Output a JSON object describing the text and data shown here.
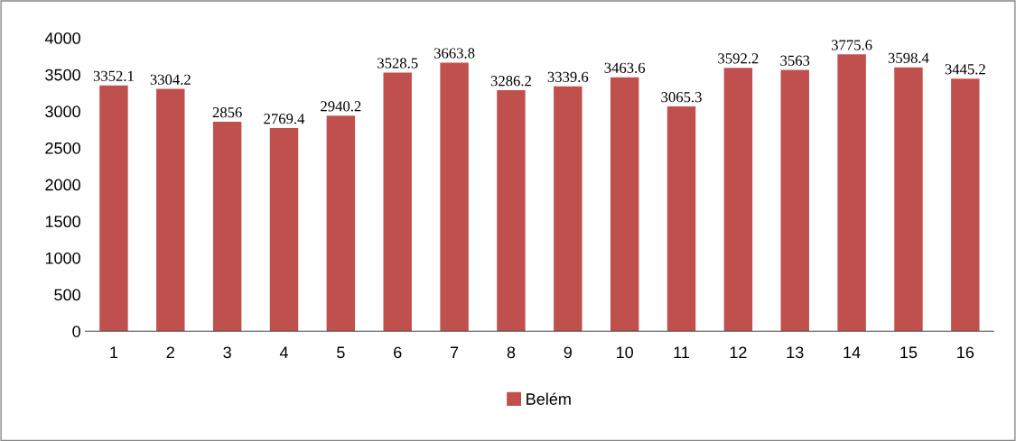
{
  "chart_data": {
    "type": "bar",
    "categories": [
      "1",
      "2",
      "3",
      "4",
      "5",
      "6",
      "7",
      "8",
      "9",
      "10",
      "11",
      "12",
      "13",
      "14",
      "15",
      "16"
    ],
    "series": [
      {
        "name": "Belém",
        "color": "#c0504d",
        "values": [
          3352.1,
          3304.2,
          2856,
          2769.4,
          2940.2,
          3528.5,
          3663.8,
          3286.2,
          3339.6,
          3463.6,
          3065.3,
          3592.2,
          3563,
          3775.6,
          3598.4,
          3445.2
        ]
      }
    ],
    "ylim": [
      0,
      4000
    ],
    "yticks": [
      0,
      500,
      1000,
      1500,
      2000,
      2500,
      3000,
      3500,
      4000
    ],
    "data_labels": true,
    "grid": false,
    "legend": "bottom"
  }
}
